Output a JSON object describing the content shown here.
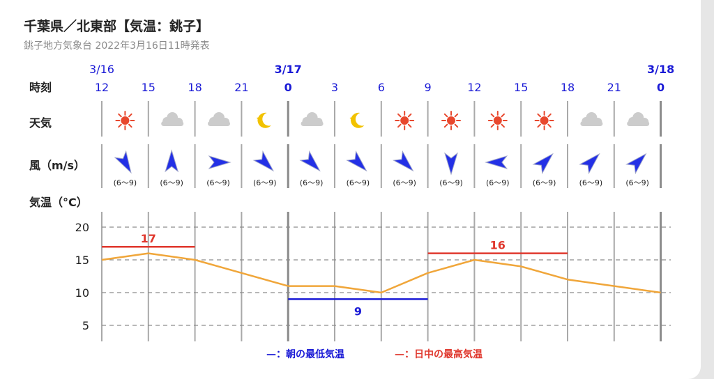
{
  "header": {
    "title": "千葉県／北東部【気温：銚子】",
    "subtitle": "銚子地方気象台 2022年3月16日11時発表"
  },
  "row_labels": {
    "time": "時刻",
    "weather": "天気",
    "wind": "風（m/s）",
    "temp": "気温（°C）"
  },
  "dates": [
    {
      "label": "3/16",
      "col": 0,
      "bold": false
    },
    {
      "label": "3/17",
      "col": 4,
      "bold": true
    },
    {
      "label": "3/18",
      "col": 12,
      "bold": true
    }
  ],
  "hours": [
    "12",
    "15",
    "18",
    "21",
    "0",
    "3",
    "6",
    "9",
    "12",
    "15",
    "18",
    "21",
    "0"
  ],
  "weather": [
    "sun-icon",
    "cloud-icon",
    "cloud-icon",
    "moon-icon",
    "cloud-icon",
    "moon-icon",
    "sun-icon",
    "sun-icon",
    "sun-icon",
    "sun-icon",
    "cloud-icon",
    "cloud-icon"
  ],
  "wind": {
    "speed_labels": [
      "(6〜9)",
      "(6〜9)",
      "(6〜9)",
      "(6〜9)",
      "(6〜9)",
      "(6〜9)",
      "(6〜9)",
      "(6〜9)",
      "(6〜9)",
      "(6〜9)",
      "(6〜9)",
      "(6〜9)"
    ],
    "arrow_directions_deg": [
      150,
      0,
      90,
      135,
      135,
      135,
      135,
      180,
      270,
      45,
      45,
      45
    ]
  },
  "colors": {
    "accent": "#1a1ad6",
    "temp_line": "#f0a63a",
    "max": "#e0382e",
    "min": "#1a1ad6",
    "sun": "#e8482e",
    "moon": "#f2c200",
    "cloud": "#cccccc"
  },
  "chart_data": {
    "type": "line",
    "x": [
      "12",
      "15",
      "18",
      "21",
      "0",
      "3",
      "6",
      "9",
      "12",
      "15",
      "18",
      "21",
      "0"
    ],
    "series": [
      {
        "values": [
          15,
          16,
          15,
          13,
          11,
          11,
          10,
          13,
          15,
          14,
          12,
          11,
          10
        ]
      }
    ],
    "ylim": [
      3,
      22
    ],
    "yticks": [
      5,
      10,
      15,
      20
    ],
    "grid": true,
    "daily_max": [
      {
        "value": 17,
        "label": "17",
        "from": 0,
        "to": 2
      },
      {
        "value": 16,
        "label": "16",
        "from": 7,
        "to": 10
      }
    ],
    "daily_min": [
      {
        "value": 9,
        "label": "9",
        "from": 4,
        "to": 7
      }
    ],
    "legend": [
      "—：朝の最低気温",
      "—：日中の最高気温"
    ],
    "legend_position": "bottom"
  }
}
